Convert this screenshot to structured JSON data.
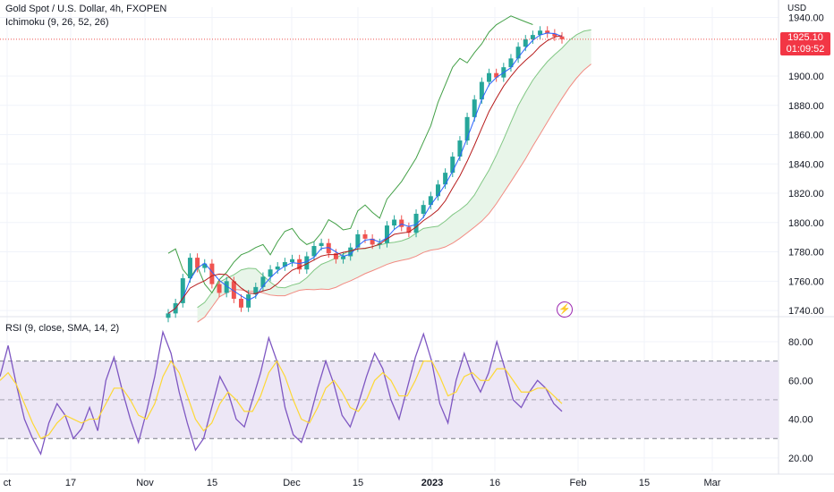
{
  "header": {
    "symbol_title": "Gold Spot / U.S. Dollar, 4h, FXOPEN",
    "indicator_title": "Ichimoku (9, 26, 52, 26)",
    "rsi_title": "RSI (9, close, SMA, 14, 2)",
    "currency": "USD"
  },
  "last_price": {
    "value": "1925.10",
    "countdown": "01:09:52",
    "color": "#f23645"
  },
  "colors": {
    "up": "#26a69a",
    "down": "#ef5350",
    "tenkan": "#2962ff",
    "kijun": "#b71c1c",
    "chikou": "#43a047",
    "cloud_bull": "#e8f5e9",
    "rsi": "#7e57c2",
    "rsi_ma": "#fdd835",
    "rsi_band": "#ede7f6",
    "grid": "#f0f3fa",
    "axis_text": "#131722"
  },
  "chart_data": [
    {
      "type": "candlestick",
      "title": "Gold Spot / U.S. Dollar, 4h, FXOPEN",
      "x_ticks": [
        "ct",
        "17",
        "Nov",
        "15",
        "Dec",
        "15",
        "2023",
        "16",
        "Feb",
        "15",
        "Mar"
      ],
      "y_ticks": [
        "1740.00",
        "1760.00",
        "1780.00",
        "1800.00",
        "1820.00",
        "1840.00",
        "1860.00",
        "1880.00",
        "1900.00",
        "1940.00"
      ],
      "ylim": [
        1737,
        1947
      ],
      "grid": true,
      "closes": [
        1738,
        1745,
        1762,
        1776,
        1769,
        1772,
        1758,
        1752,
        1760,
        1748,
        1742,
        1751,
        1756,
        1763,
        1768,
        1770,
        1773,
        1775,
        1768,
        1777,
        1784,
        1786,
        1779,
        1775,
        1777,
        1783,
        1792,
        1789,
        1785,
        1786,
        1798,
        1802,
        1797,
        1793,
        1806,
        1812,
        1818,
        1826,
        1834,
        1845,
        1856,
        1872,
        1884,
        1896,
        1902,
        1899,
        1906,
        1912,
        1920,
        1925,
        1928,
        1931,
        1929,
        1927,
        1925.1
      ],
      "last_value": 1925.1
    },
    {
      "type": "line",
      "title": "RSI (9, close, SMA, 14, 2)",
      "y_ticks": [
        "20.00",
        "40.00",
        "60.00",
        "80.00"
      ],
      "ylim": [
        13,
        92
      ],
      "bands": [
        30,
        50,
        70
      ],
      "series": [
        {
          "values": [
            62,
            78,
            58,
            40,
            30,
            22,
            38,
            48,
            42,
            30,
            35,
            46,
            34,
            60,
            72,
            55,
            40,
            28,
            44,
            62,
            85,
            74,
            54,
            38,
            24,
            30,
            46,
            62,
            54,
            40,
            36,
            50,
            64,
            82,
            70,
            46,
            32,
            28,
            40,
            56,
            70,
            58,
            42,
            36,
            48,
            62,
            74,
            66,
            50,
            40,
            56,
            72,
            84,
            70,
            48,
            38,
            60,
            74,
            62,
            54,
            64,
            80,
            66,
            50,
            46,
            54,
            60,
            56,
            48,
            44
          ]
        },
        {
          "values": [
            60,
            64,
            58,
            48,
            38,
            30,
            32,
            38,
            42,
            40,
            38,
            40,
            40,
            48,
            56,
            56,
            50,
            42,
            40,
            48,
            62,
            70,
            64,
            52,
            40,
            34,
            38,
            48,
            54,
            50,
            44,
            44,
            52,
            64,
            70,
            62,
            50,
            40,
            38,
            46,
            56,
            60,
            54,
            46,
            44,
            50,
            60,
            64,
            60,
            52,
            52,
            60,
            70,
            70,
            62,
            52,
            54,
            62,
            64,
            60,
            60,
            66,
            66,
            60,
            54,
            54,
            56,
            56,
            52,
            48
          ]
        }
      ]
    }
  ]
}
